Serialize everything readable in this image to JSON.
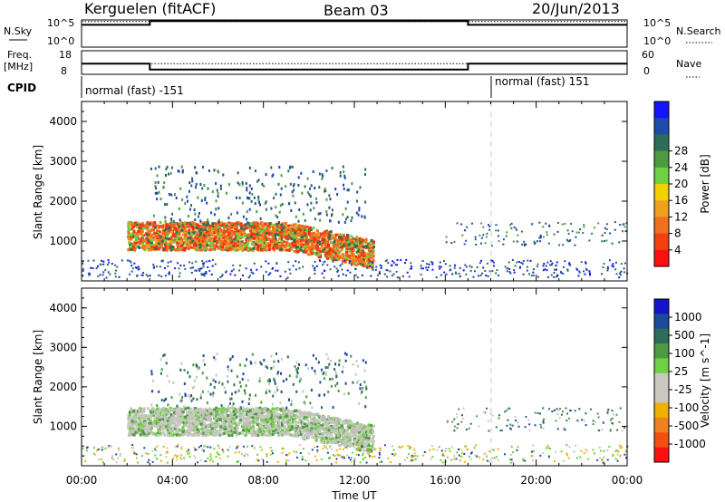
{
  "header": {
    "station": "Kerguelen (fitACF)",
    "beam": "Beam 03",
    "date": "20/Jun/2013"
  },
  "summary_panel": {
    "nsky_label": "N.Sky",
    "nsky_ticks": [
      "10^5",
      "10^0"
    ],
    "nsearch_label": "N.Search",
    "nsearch_ticks": [
      "10^5",
      "10^0"
    ],
    "freq_label_1": "Freq.",
    "freq_label_2": "[MHz]",
    "freq_ticks": [
      "18",
      "8"
    ],
    "nave_label": "Nave",
    "nave_ticks": [
      "60",
      "0"
    ],
    "cpid_label": "CPID",
    "cpid_segments": [
      {
        "label": "normal (fast) -151",
        "start_hour": 0
      },
      {
        "label": "normal (fast) 151",
        "start_hour": 18
      }
    ]
  },
  "time_axis": {
    "label": "Time UT",
    "ticks": [
      "00:00",
      "04:00",
      "08:00",
      "12:00",
      "16:00",
      "20:00",
      "00:00"
    ],
    "range_hours": [
      0,
      24
    ]
  },
  "chart_data": [
    {
      "type": "line",
      "title": "N.Sky / N.Search",
      "series": [
        {
          "name": "N.Sky",
          "x": [
            0,
            3,
            3,
            17,
            17,
            24
          ],
          "y": [
            4.1,
            4.1,
            4.8,
            4.8,
            4.1,
            4.1
          ]
        },
        {
          "name": "N.Search",
          "x": [
            0,
            24
          ],
          "y": [
            4.7,
            4.7
          ]
        }
      ],
      "ylim": [
        0,
        5
      ]
    },
    {
      "type": "line",
      "title": "Freq / Nave",
      "series": [
        {
          "name": "Freq. [MHz]",
          "x": [
            0,
            3,
            3,
            17,
            17,
            24
          ],
          "y": [
            12.5,
            12.5,
            10,
            10,
            12.5,
            12.5
          ]
        },
        {
          "name": "Nave",
          "x": [
            0,
            24
          ],
          "y": [
            12.5,
            12.5
          ]
        }
      ],
      "ylim": [
        8,
        18
      ]
    },
    {
      "type": "heatmap",
      "title": "Power",
      "xlabel": "Time UT",
      "ylabel": "Slant Range [km]",
      "y_ticks": [
        1000,
        2000,
        3000,
        4000
      ],
      "ylim": [
        0,
        4500
      ],
      "colorbar_label": "Power [dB]",
      "colorbar_ticks": [
        4,
        8,
        12,
        16,
        20,
        24,
        28
      ],
      "colorbar_colors": [
        "#1414ff",
        "#1e4aa8",
        "#2e6e58",
        "#4c9a42",
        "#6ed042",
        "#f0d000",
        "#f0a020",
        "#f07020",
        "#f04010",
        "#ff1010"
      ]
    },
    {
      "type": "heatmap",
      "title": "Velocity",
      "xlabel": "Time UT",
      "ylabel": "Slant Range [km]",
      "y_ticks": [
        1000,
        2000,
        3000,
        4000
      ],
      "ylim": [
        0,
        4500
      ],
      "colorbar_label": "Velocity [m s^-1]",
      "colorbar_ticks": [
        1000,
        500,
        100,
        25,
        -25,
        -100,
        -500,
        -1000
      ],
      "colorbar_colors": [
        "#1414c8",
        "#1e4a9a",
        "#2e6e58",
        "#4c9a42",
        "#6ed042",
        "#c8c8c0",
        "#c8c8c0",
        "#f0b000",
        "#f08020",
        "#f05010",
        "#ff1010"
      ]
    }
  ]
}
